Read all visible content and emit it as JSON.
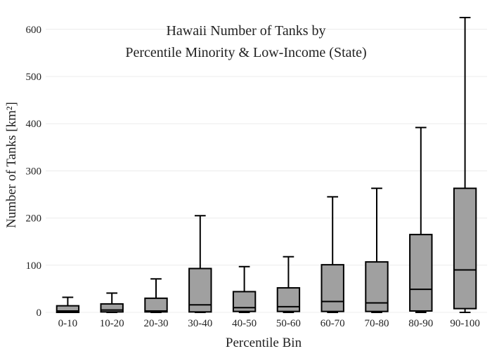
{
  "chart_data": {
    "type": "box",
    "title_lines": [
      "Hawaii Number of Tanks by",
      "Percentile Minority & Low-Income (State)"
    ],
    "xlabel": "Percentile Bin",
    "ylabel": "Number of Tanks  [km²]",
    "ylim": [
      0,
      625
    ],
    "yticks": [
      0,
      100,
      200,
      300,
      400,
      500,
      600
    ],
    "grid": true,
    "categories": [
      "0-10",
      "10-20",
      "20-30",
      "30-40",
      "40-50",
      "50-60",
      "60-70",
      "70-80",
      "80-90",
      "90-100"
    ],
    "boxes": [
      {
        "label": "0-10",
        "min": 0,
        "q1": 0,
        "median": 3,
        "q3": 14,
        "max": 32
      },
      {
        "label": "10-20",
        "min": 0,
        "q1": 1,
        "median": 5,
        "q3": 18,
        "max": 41
      },
      {
        "label": "20-30",
        "min": 0,
        "q1": 1,
        "median": 3,
        "q3": 30,
        "max": 71
      },
      {
        "label": "30-40",
        "min": 0,
        "q1": 1,
        "median": 16,
        "q3": 93,
        "max": 205
      },
      {
        "label": "40-50",
        "min": 0,
        "q1": 2,
        "median": 10,
        "q3": 44,
        "max": 97
      },
      {
        "label": "50-60",
        "min": 0,
        "q1": 2,
        "median": 12,
        "q3": 52,
        "max": 118
      },
      {
        "label": "60-70",
        "min": 0,
        "q1": 2,
        "median": 23,
        "q3": 101,
        "max": 245
      },
      {
        "label": "70-80",
        "min": 0,
        "q1": 2,
        "median": 20,
        "q3": 107,
        "max": 263
      },
      {
        "label": "80-90",
        "min": 0,
        "q1": 3,
        "median": 49,
        "q3": 165,
        "max": 392
      },
      {
        "label": "90-100",
        "min": 0,
        "q1": 8,
        "median": 90,
        "q3": 263,
        "max": 625
      }
    ]
  }
}
